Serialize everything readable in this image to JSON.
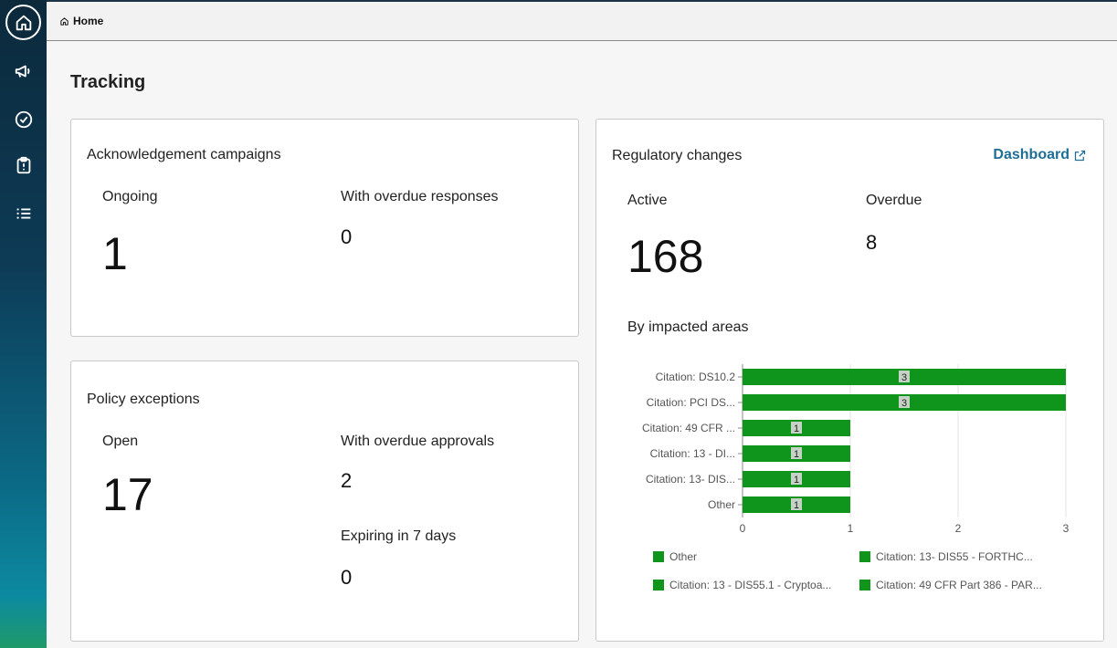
{
  "nav": {
    "items": [
      {
        "name": "home",
        "icon": "home-icon"
      },
      {
        "name": "campaigns",
        "icon": "megaphone-icon"
      },
      {
        "name": "tasks",
        "icon": "check-circle-icon"
      },
      {
        "name": "clipboard",
        "icon": "clipboard-alert-icon"
      },
      {
        "name": "list",
        "icon": "list-icon"
      }
    ]
  },
  "breadcrumb": {
    "label": "Home",
    "icon": "home-icon"
  },
  "page": {
    "title": "Tracking"
  },
  "ack": {
    "title": "Acknowledgement campaigns",
    "ongoing_label": "Ongoing",
    "ongoing_value": "1",
    "overdue_label": "With overdue responses",
    "overdue_value": "0"
  },
  "policy": {
    "title": "Policy exceptions",
    "open_label": "Open",
    "open_value": "17",
    "overdue_label": "With overdue approvals",
    "overdue_value": "2",
    "expiring_label": "Expiring in 7 days",
    "expiring_value": "0"
  },
  "reg": {
    "title": "Regulatory changes",
    "dashboard_label": "Dashboard",
    "active_label": "Active",
    "active_value": "168",
    "overdue_label": "Overdue",
    "overdue_value": "8",
    "chart_title": "By impacted areas"
  },
  "colors": {
    "bar": "#10951c",
    "link": "#1e6e96"
  },
  "chart_data": {
    "type": "bar",
    "orientation": "horizontal",
    "categories": [
      "Citation: DS10.2",
      "Citation: PCI DS...",
      "Citation: 49 CFR ...",
      "Citation: 13 - DI...",
      "Citation: 13- DIS...",
      "Other"
    ],
    "values": [
      3,
      3,
      1,
      1,
      1,
      1
    ],
    "xlim": [
      0,
      3
    ],
    "xticks": [
      "0",
      "1",
      "2",
      "3"
    ],
    "grid": true,
    "legend": [
      "Other",
      "Citation: 13- DIS55 - FORTHC...",
      "Citation: 13 - DIS55.1 - Cryptoa...",
      "Citation: 49 CFR Part 386 - PAR..."
    ]
  }
}
